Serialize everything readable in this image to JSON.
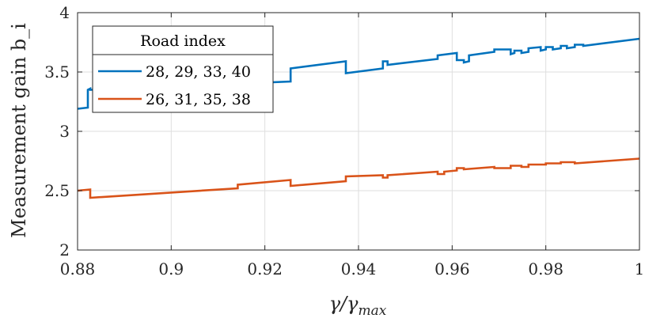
{
  "chart_data": {
    "type": "line",
    "title": "",
    "xlabel": "γ/γ_max",
    "ylabel": "Measurement gain b_i",
    "xlim": [
      0.88,
      1.0
    ],
    "ylim": [
      2,
      4
    ],
    "grid": true,
    "xticks": [
      0.88,
      0.9,
      0.92,
      0.94,
      0.96,
      0.98,
      1.0
    ],
    "xtick_labels": [
      "0.88",
      "0.9",
      "0.92",
      "0.94",
      "0.96",
      "0.98",
      "1"
    ],
    "yticks": [
      2,
      2.5,
      3,
      3.5,
      4
    ],
    "ytick_labels": [
      "2",
      "2.5",
      "3",
      "3.5",
      "4"
    ],
    "legend": {
      "title": "Road index",
      "placement": "top-left"
    },
    "series": [
      {
        "name": "28, 29, 33, 40",
        "color": "#0072BD",
        "x": [
          0.88,
          0.8822,
          0.8822,
          0.8827,
          0.8827,
          0.9255,
          0.9255,
          0.9373,
          0.9373,
          0.9452,
          0.9452,
          0.9462,
          0.9462,
          0.9569,
          0.9569,
          0.961,
          0.961,
          0.9625,
          0.9625,
          0.9636,
          0.9636,
          0.969,
          0.969,
          0.9725,
          0.9725,
          0.9733,
          0.9733,
          0.9748,
          0.9748,
          0.9763,
          0.9763,
          0.9789,
          0.9789,
          0.98,
          0.98,
          0.9815,
          0.9815,
          0.9832,
          0.9832,
          0.9845,
          0.9845,
          0.9862,
          0.9862,
          0.988,
          0.988,
          1.0
        ],
        "y": [
          3.19,
          3.2,
          3.35,
          3.36,
          3.35,
          3.42,
          3.53,
          3.59,
          3.49,
          3.53,
          3.59,
          3.59,
          3.56,
          3.61,
          3.64,
          3.66,
          3.6,
          3.6,
          3.58,
          3.59,
          3.64,
          3.67,
          3.69,
          3.69,
          3.65,
          3.66,
          3.68,
          3.68,
          3.66,
          3.67,
          3.7,
          3.71,
          3.68,
          3.69,
          3.71,
          3.71,
          3.69,
          3.7,
          3.72,
          3.72,
          3.7,
          3.71,
          3.73,
          3.73,
          3.72,
          3.78
        ]
      },
      {
        "name": "26, 31, 35, 38",
        "color": "#D95319",
        "x": [
          0.88,
          0.8827,
          0.8827,
          0.9142,
          0.9142,
          0.9255,
          0.9255,
          0.9373,
          0.9373,
          0.9452,
          0.9452,
          0.9462,
          0.9462,
          0.9569,
          0.9569,
          0.9583,
          0.9583,
          0.961,
          0.961,
          0.9625,
          0.9625,
          0.969,
          0.969,
          0.9725,
          0.9725,
          0.9748,
          0.9748,
          0.9763,
          0.9763,
          0.98,
          0.98,
          0.9832,
          0.9832,
          0.9862,
          0.9862,
          1.0
        ],
        "y": [
          2.5,
          2.51,
          2.44,
          2.52,
          2.55,
          2.59,
          2.54,
          2.58,
          2.62,
          2.63,
          2.61,
          2.61,
          2.63,
          2.66,
          2.64,
          2.64,
          2.66,
          2.67,
          2.69,
          2.69,
          2.68,
          2.7,
          2.69,
          2.69,
          2.71,
          2.71,
          2.7,
          2.7,
          2.72,
          2.72,
          2.73,
          2.73,
          2.74,
          2.74,
          2.73,
          2.77
        ]
      }
    ]
  }
}
